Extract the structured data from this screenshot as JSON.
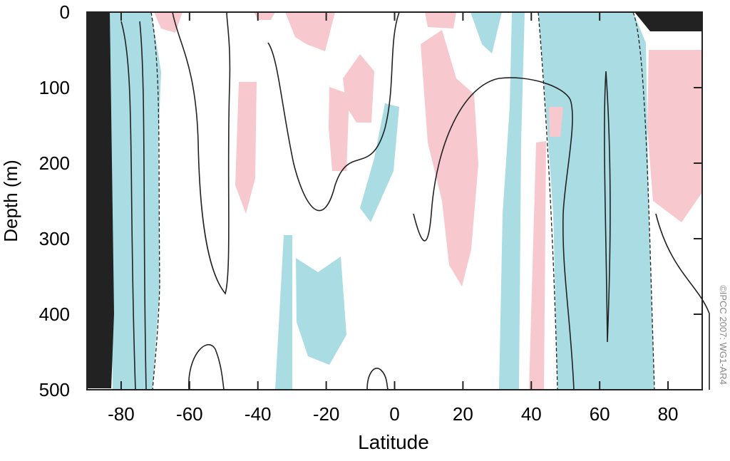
{
  "chart_data": {
    "type": "contour",
    "xlabel": "Latitude",
    "ylabel": "Depth (m)",
    "xlim": [
      -90,
      90
    ],
    "ylim": [
      500,
      0
    ],
    "xticks": [
      -80,
      -60,
      -40,
      -20,
      0,
      20,
      40,
      60,
      80
    ],
    "yticks": [
      0,
      100,
      200,
      300,
      400,
      500
    ],
    "credit": "©IPCC 2007: WG1-AR4"
  }
}
